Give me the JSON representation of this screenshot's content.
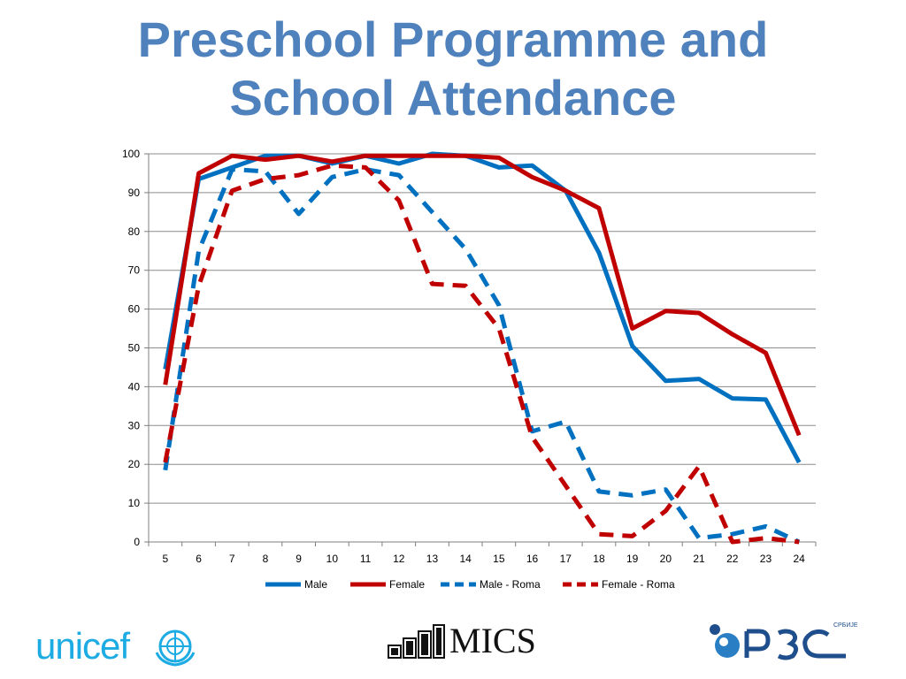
{
  "title_lines": [
    "Preschool Programme and",
    "School Attendance"
  ],
  "chart_data": {
    "type": "line",
    "x": [
      5,
      6,
      7,
      8,
      9,
      10,
      11,
      12,
      13,
      14,
      15,
      16,
      17,
      18,
      19,
      20,
      21,
      22,
      23,
      24
    ],
    "ylim": [
      0,
      100
    ],
    "yticks": [
      0,
      10,
      20,
      30,
      40,
      50,
      60,
      70,
      80,
      90,
      100
    ],
    "grid": true,
    "legend_position": "bottom",
    "series": [
      {
        "name": "Male",
        "color": "#0070c0",
        "dash": "solid",
        "values": [
          44.5,
          93.5,
          96.5,
          99.5,
          99.5,
          97.5,
          99.5,
          97.5,
          100,
          99.5,
          96.5,
          97,
          90.5,
          74.5,
          50.5,
          41.5,
          42,
          37,
          36.7,
          20.5
        ]
      },
      {
        "name": "Female",
        "color": "#c00000",
        "dash": "solid",
        "values": [
          40.5,
          95,
          99.5,
          98.5,
          99.5,
          98,
          99.5,
          99.5,
          99.5,
          99.5,
          99,
          94,
          90.5,
          86,
          55,
          59.5,
          59,
          53.5,
          48.7,
          27.5
        ]
      },
      {
        "name": "Male - Roma",
        "color": "#0070c0",
        "dash": "dashed",
        "values": [
          18.5,
          75,
          96,
          95.5,
          84.5,
          94,
          96,
          94.5,
          85,
          75.5,
          61,
          28.5,
          31,
          13,
          12,
          13.5,
          1,
          2,
          4,
          0
        ]
      },
      {
        "name": "Female - Roma",
        "color": "#c00000",
        "dash": "dashed",
        "values": [
          20.5,
          66,
          90.5,
          93.5,
          94.5,
          97,
          96.5,
          88,
          66.5,
          66,
          55,
          27,
          14.5,
          2,
          1.5,
          8,
          19.5,
          0,
          1,
          0
        ]
      }
    ]
  },
  "logos": {
    "unicef": {
      "text": "unicef",
      "icon": "un-emblem-icon",
      "color": "#1cabe2"
    },
    "mics": {
      "text": "MICS",
      "icon": "bar-steps-icon"
    },
    "rzs": {
      "text": "РЗС",
      "subtext": "СРБИЈЕ",
      "icon": "rzs-logo-icon",
      "color": "#1f4e8c"
    }
  }
}
